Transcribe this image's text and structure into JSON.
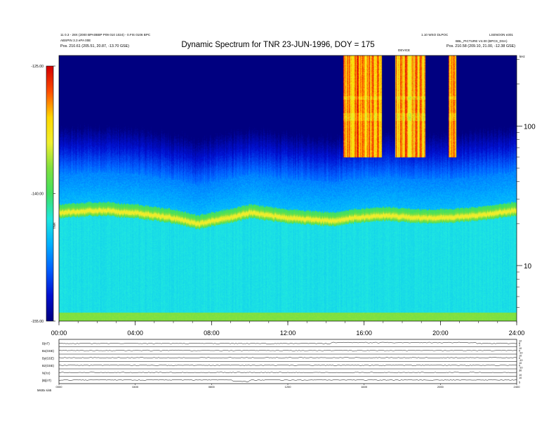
{
  "header": {
    "left_line1": "11 0.3 - 28X (2000 BPA0BBP P09 010 1024) - 0.FIS 0106 BPC",
    "left_line2": "ABSPIN 3.3 ePA 00E",
    "left_line3": "Pos.   210.61 (205.51, 20.87, -13.70 GSE)",
    "right_line1": "1.10 WSO DLPOC",
    "right_line1b": "LSENOON e301",
    "right_line2": "BBL_PICTURE V4.00 (BPCS_DSA)",
    "right_line3": "Pos.   210.58 (209.10, 21.00, -12.38 GSE)",
    "mid_label": "DEVICE"
  },
  "chart_data": {
    "type": "heatmap",
    "title": "Dynamic Spectrum for TNR 23-JUN-1996, DOY = 175",
    "x_ticks": [
      "00:00",
      "04:00",
      "08:00",
      "12:00",
      "16:00",
      "20:00",
      "24:00"
    ],
    "xlim_hours": [
      0,
      24
    ],
    "y_scale": "log",
    "y_ticks": [
      "100",
      "10"
    ],
    "y_units": "kHz",
    "ylim_khz": [
      4,
      320
    ],
    "colorbar": {
      "label": "TNR",
      "ticks": [
        "-125.00",
        "-140.00",
        "-155.00"
      ],
      "range": [
        -155,
        -125
      ],
      "colors": [
        "#d40000",
        "#ff5000",
        "#ffd800",
        "#f0f030",
        "#80e040",
        "#40e060",
        "#20e8e0",
        "#00b0ff",
        "#0060ff",
        "#0010d0",
        "#000080"
      ]
    },
    "features": {
      "plasma_line_khz": [
        {
          "t": 0,
          "f": 24
        },
        {
          "t": 2,
          "f": 25
        },
        {
          "t": 4,
          "f": 24
        },
        {
          "t": 6,
          "f": 22
        },
        {
          "t": 7.3,
          "f": 20
        },
        {
          "t": 8,
          "f": 21
        },
        {
          "t": 9.5,
          "f": 23
        },
        {
          "t": 10,
          "f": 24
        },
        {
          "t": 12,
          "f": 22
        },
        {
          "t": 14.5,
          "f": 21
        },
        {
          "t": 15.3,
          "f": 22
        },
        {
          "t": 17,
          "f": 23
        },
        {
          "t": 19,
          "f": 22
        },
        {
          "t": 20,
          "f": 22
        },
        {
          "t": 22,
          "f": 23
        },
        {
          "t": 24,
          "f": 25
        }
      ],
      "burst_intervals_hours": [
        [
          14.9,
          16.9
        ],
        [
          17.6,
          19.2
        ],
        [
          20.4,
          20.8
        ]
      ]
    },
    "lower_panels": {
      "rows": [
        {
          "label": "B(nT)",
          "right_ticks": [
            "12",
            "8",
            "4"
          ]
        },
        {
          "label": "Bx(GSE)",
          "right_ticks": [
            "10",
            "0",
            "-10"
          ]
        },
        {
          "label": "By(GSE)",
          "right_ticks": [
            "10",
            "0",
            "-10"
          ]
        },
        {
          "label": "Bz(GSE)",
          "right_ticks": [
            "10",
            "0",
            "-10"
          ]
        },
        {
          "label": "N(/cc)",
          "right_ticks": [
            "30",
            "10"
          ]
        },
        {
          "label": "|B|(nT)",
          "right_ticks": [
            "10",
            "5"
          ]
        }
      ],
      "x_ticks": [
        "0000",
        "0400",
        "0800",
        "1200",
        "1600",
        "2000",
        "2400"
      ],
      "footer": "Mstrtx   sin5"
    }
  }
}
